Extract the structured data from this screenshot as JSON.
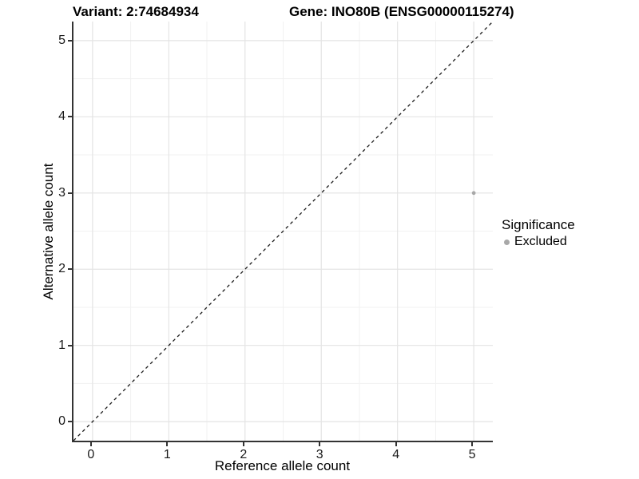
{
  "figure": {
    "title_left": "Variant: 2:74684934",
    "title_right": "Gene: INO80B (ENSG00000115274)"
  },
  "chart_data": {
    "type": "scatter",
    "title_left": "Variant: 2:74684934",
    "title_right": "Gene: INO80B (ENSG00000115274)",
    "xlabel": "Reference allele count",
    "ylabel": "Alternative allele count",
    "xlim": [
      -0.25,
      5.25
    ],
    "ylim": [
      -0.25,
      5.25
    ],
    "x_ticks": [
      0,
      1,
      2,
      3,
      4,
      5
    ],
    "y_ticks": [
      0,
      1,
      2,
      3,
      4,
      5
    ],
    "x_minor_ticks": [
      0.5,
      1.5,
      2.5,
      3.5,
      4.5
    ],
    "y_minor_ticks": [
      0.5,
      1.5,
      2.5,
      3.5,
      4.5
    ],
    "grid": "major and minor gridlines, white panel background",
    "points": [
      {
        "x": 5,
        "y": 3,
        "significance": "Excluded"
      }
    ],
    "identity_line": {
      "slope": 1,
      "intercept": 0,
      "style": "dashed",
      "color": "#000000"
    },
    "legend": {
      "title": "Significance",
      "position": "right",
      "entries": [
        {
          "label": "Excluded",
          "color": "#a8a8a8"
        }
      ]
    }
  },
  "colors": {
    "point": "#a8a8a8",
    "grid_major": "#e4e4e4",
    "grid_minor": "#f1f1f1",
    "axis_line": "#333333",
    "dashed_line": "#1a1a1a",
    "background": "#ffffff",
    "text": "#000000"
  }
}
